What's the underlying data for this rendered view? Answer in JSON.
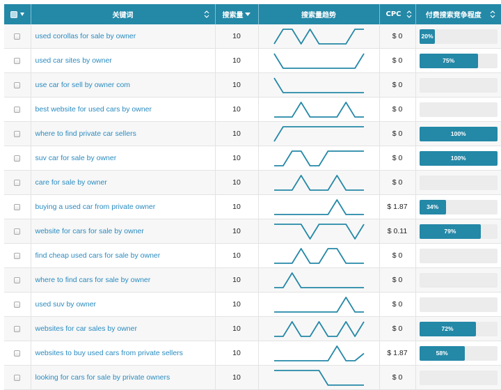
{
  "headers": {
    "keyword": "关键词",
    "volume": "搜索量",
    "trend": "搜索量趋势",
    "cpc": "CPC",
    "competition": "付费搜索竞争程度"
  },
  "accent_color": "#2488a7",
  "rows": [
    {
      "keyword": "used corollas for sale by owner",
      "volume": "10",
      "cpc": "$ 0",
      "competition": 20,
      "competition_label": "20%",
      "trend": [
        0,
        1,
        1,
        0,
        1,
        0,
        0,
        0,
        0,
        1,
        1
      ]
    },
    {
      "keyword": "used car sites by owner",
      "volume": "10",
      "cpc": "$ 0",
      "competition": 75,
      "competition_label": "75%",
      "trend": [
        1,
        0,
        0,
        0,
        0,
        0,
        0,
        0,
        0,
        0,
        1
      ]
    },
    {
      "keyword": "use car for sell by owner com",
      "volume": "10",
      "cpc": "$ 0",
      "competition": 0,
      "competition_label": "",
      "trend": [
        1,
        0,
        0,
        0,
        0,
        0,
        0,
        0,
        0,
        0,
        0
      ]
    },
    {
      "keyword": "best website for used cars by owner",
      "volume": "10",
      "cpc": "$ 0",
      "competition": 0,
      "competition_label": "",
      "trend": [
        0,
        0,
        0,
        1,
        0,
        0,
        0,
        0,
        1,
        0,
        0
      ]
    },
    {
      "keyword": "where to find private car sellers",
      "volume": "10",
      "cpc": "$ 0",
      "competition": 100,
      "competition_label": "100%",
      "trend": [
        0,
        1,
        1,
        1,
        1,
        1,
        1,
        1,
        1,
        1,
        1
      ]
    },
    {
      "keyword": "suv car for sale by owner",
      "volume": "10",
      "cpc": "$ 0",
      "competition": 100,
      "competition_label": "100%",
      "trend": [
        0,
        0,
        1,
        1,
        0,
        0,
        1,
        1,
        1,
        1,
        1
      ]
    },
    {
      "keyword": "care for sale by owner",
      "volume": "10",
      "cpc": "$ 0",
      "competition": 0,
      "competition_label": "",
      "trend": [
        0,
        0,
        0,
        1,
        0,
        0,
        0,
        1,
        0,
        0,
        0
      ]
    },
    {
      "keyword": "buying a used car from private owner",
      "volume": "10",
      "cpc": "$ 1.87",
      "competition": 34,
      "competition_label": "34%",
      "trend": [
        0,
        0,
        0,
        0,
        0,
        0,
        0,
        1,
        0,
        0,
        0
      ]
    },
    {
      "keyword": "website for cars for sale by owner",
      "volume": "10",
      "cpc": "$ 0.11",
      "competition": 79,
      "competition_label": "79%",
      "trend": [
        1,
        1,
        1,
        1,
        0,
        1,
        1,
        1,
        1,
        0,
        1
      ]
    },
    {
      "keyword": "find cheap used cars for sale by owner",
      "volume": "10",
      "cpc": "$ 0",
      "competition": 0,
      "competition_label": "",
      "trend": [
        0,
        0,
        0,
        1,
        0,
        0,
        1,
        1,
        0,
        0,
        0
      ]
    },
    {
      "keyword": "where to find cars for sale by owner",
      "volume": "10",
      "cpc": "$ 0",
      "competition": 0,
      "competition_label": "",
      "trend": [
        0,
        0,
        1,
        0,
        0,
        0,
        0,
        0,
        0,
        0,
        0
      ]
    },
    {
      "keyword": "used suv by owner",
      "volume": "10",
      "cpc": "$ 0",
      "competition": 0,
      "competition_label": "",
      "trend": [
        0,
        0,
        0,
        0,
        0,
        0,
        0,
        0,
        1,
        0,
        0
      ]
    },
    {
      "keyword": "websites for car sales by owner",
      "volume": "10",
      "cpc": "$ 0",
      "competition": 72,
      "competition_label": "72%",
      "trend": [
        0,
        0,
        1,
        0,
        0,
        1,
        0,
        0,
        1,
        0,
        1
      ]
    },
    {
      "keyword": "websites to buy used cars from private sellers",
      "volume": "10",
      "cpc": "$ 1.87",
      "competition": 58,
      "competition_label": "58%",
      "trend": [
        0,
        0,
        0,
        0,
        0,
        0,
        0,
        1,
        0,
        0,
        0.5
      ]
    },
    {
      "keyword": "looking for cars for sale by private owners",
      "volume": "10",
      "cpc": "$ 0",
      "competition": 0,
      "competition_label": "",
      "trend": [
        1,
        1,
        1,
        1,
        1,
        1,
        0,
        0,
        0,
        0,
        0
      ]
    }
  ]
}
